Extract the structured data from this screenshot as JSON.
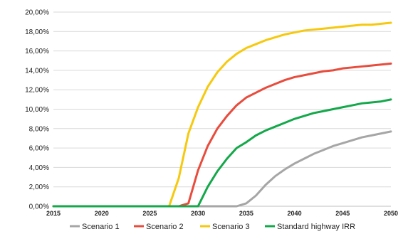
{
  "chart_data": {
    "type": "line",
    "title": "",
    "xlabel": "",
    "ylabel": "",
    "xlim": [
      2015,
      2050
    ],
    "ylim": [
      0,
      0.2
    ],
    "grid": "horizontal",
    "legend_position": "bottom",
    "yticks": [
      "0,00%",
      "2,00%",
      "4,00%",
      "6,00%",
      "8,00%",
      "10,00%",
      "12,00%",
      "14,00%",
      "16,00%",
      "18,00%",
      "20,00%"
    ],
    "xticks": [
      "2015",
      "2020",
      "2025",
      "2030",
      "2035",
      "2040",
      "2045",
      "2050"
    ],
    "x": [
      2015,
      2016,
      2017,
      2018,
      2019,
      2020,
      2021,
      2022,
      2023,
      2024,
      2025,
      2026,
      2027,
      2028,
      2029,
      2030,
      2031,
      2032,
      2033,
      2034,
      2035,
      2036,
      2037,
      2038,
      2039,
      2040,
      2041,
      2042,
      2043,
      2044,
      2045,
      2046,
      2047,
      2048,
      2049,
      2050
    ],
    "series": [
      {
        "name": "Scenario 1",
        "color": "#a6a6a6",
        "values": [
          0,
          0,
          0,
          0,
          0,
          0,
          0,
          0,
          0,
          0,
          0,
          0,
          0,
          0,
          0,
          0,
          0,
          0,
          0,
          0,
          0.003,
          0.011,
          0.022,
          0.031,
          0.038,
          0.044,
          0.049,
          0.054,
          0.058,
          0.062,
          0.065,
          0.068,
          0.071,
          0.073,
          0.075,
          0.077
        ]
      },
      {
        "name": "Scenario 2",
        "color": "#e84c3d",
        "values": [
          0,
          0,
          0,
          0,
          0,
          0,
          0,
          0,
          0,
          0,
          0,
          0,
          0,
          0,
          0.003,
          0.037,
          0.062,
          0.08,
          0.093,
          0.104,
          0.112,
          0.117,
          0.122,
          0.126,
          0.13,
          0.133,
          0.135,
          0.137,
          0.139,
          0.14,
          0.142,
          0.143,
          0.144,
          0.145,
          0.146,
          0.147
        ]
      },
      {
        "name": "Scenario 3",
        "color": "#f6c90e",
        "values": [
          0,
          0,
          0,
          0,
          0,
          0,
          0,
          0,
          0,
          0,
          0,
          0,
          0,
          0.029,
          0.075,
          0.102,
          0.123,
          0.138,
          0.149,
          0.157,
          0.163,
          0.167,
          0.171,
          0.174,
          0.177,
          0.179,
          0.181,
          0.182,
          0.183,
          0.184,
          0.185,
          0.186,
          0.187,
          0.187,
          0.188,
          0.189
        ]
      },
      {
        "name": "Standard highway IRR",
        "color": "#13a84a",
        "values": [
          0,
          0,
          0,
          0,
          0,
          0,
          0,
          0,
          0,
          0,
          0,
          0,
          0,
          0,
          0,
          0,
          0.02,
          0.036,
          0.049,
          0.06,
          0.066,
          0.073,
          0.078,
          0.082,
          0.086,
          0.09,
          0.093,
          0.096,
          0.098,
          0.1,
          0.102,
          0.104,
          0.106,
          0.107,
          0.108,
          0.11
        ]
      }
    ]
  }
}
